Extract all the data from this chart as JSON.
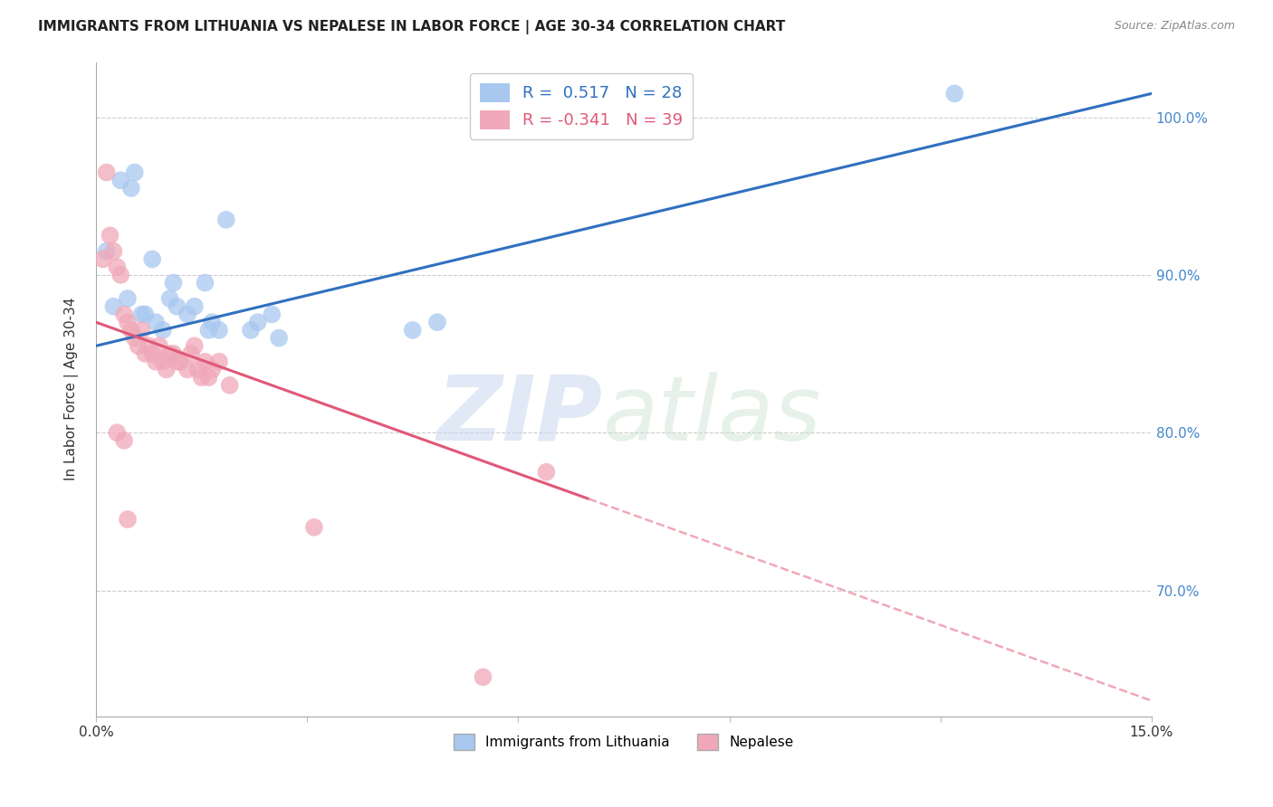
{
  "title": "IMMIGRANTS FROM LITHUANIA VS NEPALESE IN LABOR FORCE | AGE 30-34 CORRELATION CHART",
  "source": "Source: ZipAtlas.com",
  "ylabel": "In Labor Force | Age 30-34",
  "r_blue": 0.517,
  "n_blue": 28,
  "r_pink": -0.341,
  "n_pink": 39,
  "blue_color": "#a8c8f0",
  "pink_color": "#f0a8b8",
  "blue_line_color": "#3070c0",
  "pink_line_color": "#e05878",
  "pink_dash_color": "#f0a8b8",
  "xmin": 0.0,
  "xmax": 15.0,
  "ymin": 62.0,
  "ymax": 103.5,
  "yticks": [
    70.0,
    80.0,
    90.0,
    100.0
  ],
  "ytick_labels": [
    "70.0%",
    "80.0%",
    "90.0%",
    "100.0%"
  ],
  "blue_line_x0": 0.0,
  "blue_line_y0": 85.5,
  "blue_line_x1": 15.0,
  "blue_line_y1": 101.5,
  "pink_line_x0": 0.0,
  "pink_line_y0": 87.0,
  "pink_line_x1": 15.0,
  "pink_line_y1": 63.0,
  "pink_solid_end": 7.0,
  "blue_scatter_x": [
    0.15,
    0.55,
    0.45,
    0.65,
    0.8,
    0.85,
    0.95,
    1.05,
    1.1,
    1.15,
    1.3,
    1.4,
    1.55,
    1.65,
    1.75,
    1.85,
    2.2,
    2.3,
    2.5,
    2.6,
    0.35,
    0.5,
    0.7,
    1.6,
    4.5,
    4.85,
    12.2,
    0.25
  ],
  "blue_scatter_y": [
    91.5,
    96.5,
    88.5,
    87.5,
    91.0,
    87.0,
    86.5,
    88.5,
    89.5,
    88.0,
    87.5,
    88.0,
    89.5,
    87.0,
    86.5,
    93.5,
    86.5,
    87.0,
    87.5,
    86.0,
    96.0,
    95.5,
    87.5,
    86.5,
    86.5,
    87.0,
    101.5,
    88.0
  ],
  "pink_scatter_x": [
    0.1,
    0.15,
    0.2,
    0.25,
    0.3,
    0.35,
    0.4,
    0.45,
    0.5,
    0.55,
    0.6,
    0.65,
    0.7,
    0.75,
    0.8,
    0.85,
    0.9,
    0.95,
    1.0,
    1.05,
    1.1,
    1.15,
    1.2,
    1.3,
    1.35,
    1.4,
    1.45,
    1.5,
    1.55,
    1.6,
    1.65,
    1.75,
    1.9,
    0.3,
    0.4,
    0.45,
    6.4,
    3.1,
    5.5
  ],
  "pink_scatter_y": [
    91.0,
    96.5,
    92.5,
    91.5,
    90.5,
    90.0,
    87.5,
    87.0,
    86.5,
    86.0,
    85.5,
    86.5,
    85.0,
    85.5,
    85.0,
    84.5,
    85.5,
    84.5,
    84.0,
    85.0,
    85.0,
    84.5,
    84.5,
    84.0,
    85.0,
    85.5,
    84.0,
    83.5,
    84.5,
    83.5,
    84.0,
    84.5,
    83.0,
    80.0,
    79.5,
    74.5,
    77.5,
    74.0,
    64.5
  ]
}
